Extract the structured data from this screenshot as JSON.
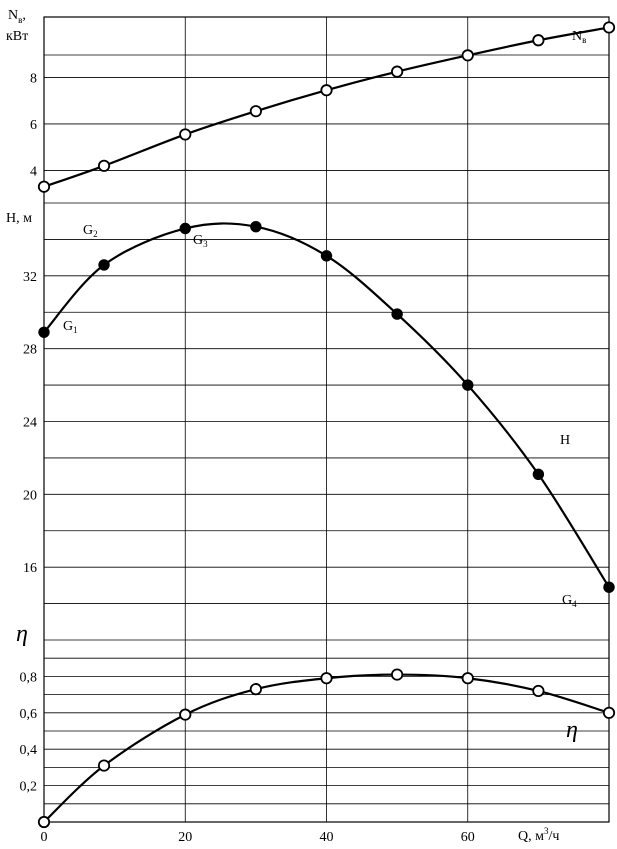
{
  "chart_data": {
    "type": "line",
    "panels": [
      {
        "id": "power",
        "ylabel": "N",
        "ylabel_sub": "в",
        "ylabel_unit": "кВт",
        "yticks": [
          "4",
          "6",
          "8"
        ],
        "ytick_values": [
          4,
          6,
          8
        ],
        "ylim": [
          2.6,
          10.6
        ],
        "series": [
          {
            "name": "N",
            "name_sub": "в",
            "marker": "open",
            "points": [
              [
                0,
                3.3
              ],
              [
                8.5,
                4.2
              ],
              [
                20,
                5.55
              ],
              [
                30,
                6.55
              ],
              [
                40,
                7.45
              ],
              [
                50,
                8.25
              ],
              [
                60,
                8.95
              ],
              [
                70,
                9.6
              ],
              [
                80,
                10.15
              ]
            ]
          }
        ]
      },
      {
        "id": "head",
        "ylabel": "H, м",
        "yticks": [
          "16",
          "20",
          "24",
          "28",
          "32"
        ],
        "ytick_values": [
          16,
          20,
          24,
          28,
          32
        ],
        "ylim": [
          12,
          36
        ],
        "series": [
          {
            "name": "H",
            "marker": "filled",
            "points": [
              [
                0,
                28.9
              ],
              [
                8.5,
                32.6
              ],
              [
                20,
                34.6
              ],
              [
                30,
                34.7
              ],
              [
                40,
                33.1
              ],
              [
                50,
                29.9
              ],
              [
                60,
                26.0
              ],
              [
                70,
                21.1
              ],
              [
                80,
                14.9
              ]
            ]
          }
        ],
        "point_labels": [
          {
            "text": "G",
            "sub": "1"
          },
          {
            "text": "G",
            "sub": "2"
          },
          {
            "text": "G",
            "sub": "3"
          },
          {
            "text": "G",
            "sub": "4"
          }
        ]
      },
      {
        "id": "efficiency",
        "ylabel": "η",
        "yticks": [
          "0,2",
          "0,4",
          "0,6",
          "0,8"
        ],
        "ytick_values": [
          0.2,
          0.4,
          0.6,
          0.8
        ],
        "ylim": [
          0,
          1.0
        ],
        "series": [
          {
            "name": "η",
            "marker": "open",
            "points": [
              [
                0,
                0.0
              ],
              [
                8.5,
                0.31
              ],
              [
                20,
                0.59
              ],
              [
                30,
                0.73
              ],
              [
                40,
                0.79
              ],
              [
                50,
                0.81
              ],
              [
                60,
                0.79
              ],
              [
                70,
                0.72
              ],
              [
                80,
                0.6
              ]
            ]
          }
        ]
      }
    ],
    "x": {
      "label": "Q, м",
      "label_sup": "3",
      "label_unit": "/ч",
      "ticks": [
        "0",
        "20",
        "40",
        "60"
      ],
      "tick_values": [
        0,
        20,
        40,
        60
      ],
      "xlim": [
        0,
        80
      ]
    },
    "grid": true
  }
}
